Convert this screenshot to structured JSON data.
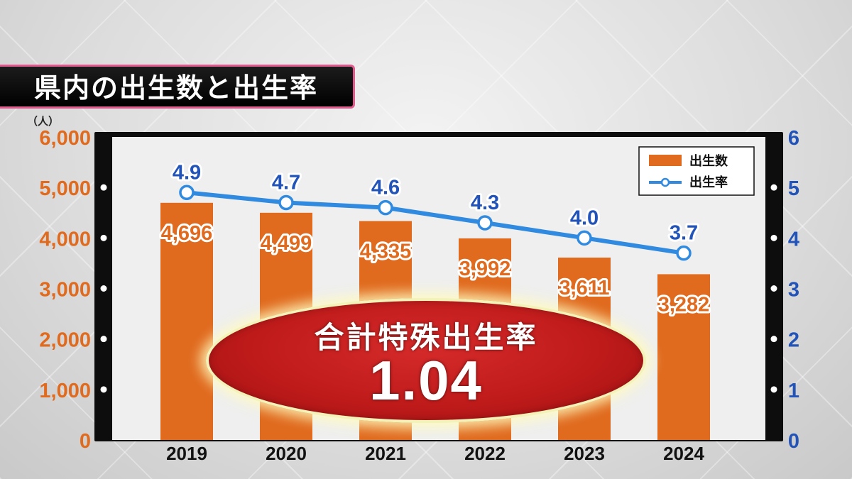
{
  "title": "県内の出生数と出生率",
  "chart_data": {
    "type": "bar",
    "categories": [
      "2019",
      "2020",
      "2021",
      "2022",
      "2023",
      "2024"
    ],
    "series": [
      {
        "name": "出生数",
        "type": "bar",
        "axis": "left",
        "values": [
          4696,
          4499,
          4335,
          3992,
          3611,
          3282
        ],
        "labels": [
          "4,696",
          "4,499",
          "4,335",
          "3,992",
          "3,611",
          "3,282"
        ],
        "color": "#e06a1e"
      },
      {
        "name": "出生率",
        "type": "line",
        "axis": "right",
        "values": [
          4.9,
          4.7,
          4.6,
          4.3,
          4.0,
          3.7
        ],
        "labels": [
          "4.9",
          "4.7",
          "4.6",
          "4.3",
          "4.0",
          "3.7"
        ],
        "color": "#2f8ae0"
      }
    ],
    "left_axis": {
      "unit": "（人）",
      "ylim": [
        0,
        6000
      ],
      "ticks": [
        "0",
        "1,000",
        "2,000",
        "3,000",
        "4,000",
        "5,000",
        "6,000"
      ],
      "color": "#e06a1e"
    },
    "right_axis": {
      "ylim": [
        0,
        6
      ],
      "ticks": [
        "0",
        "1",
        "2",
        "3",
        "4",
        "5",
        "6"
      ],
      "color": "#2253b8"
    },
    "legend": {
      "position": "top-right",
      "items": [
        "出生数",
        "出生率"
      ]
    }
  },
  "callout": {
    "label": "合計特殊出生率",
    "value": "1.04"
  }
}
